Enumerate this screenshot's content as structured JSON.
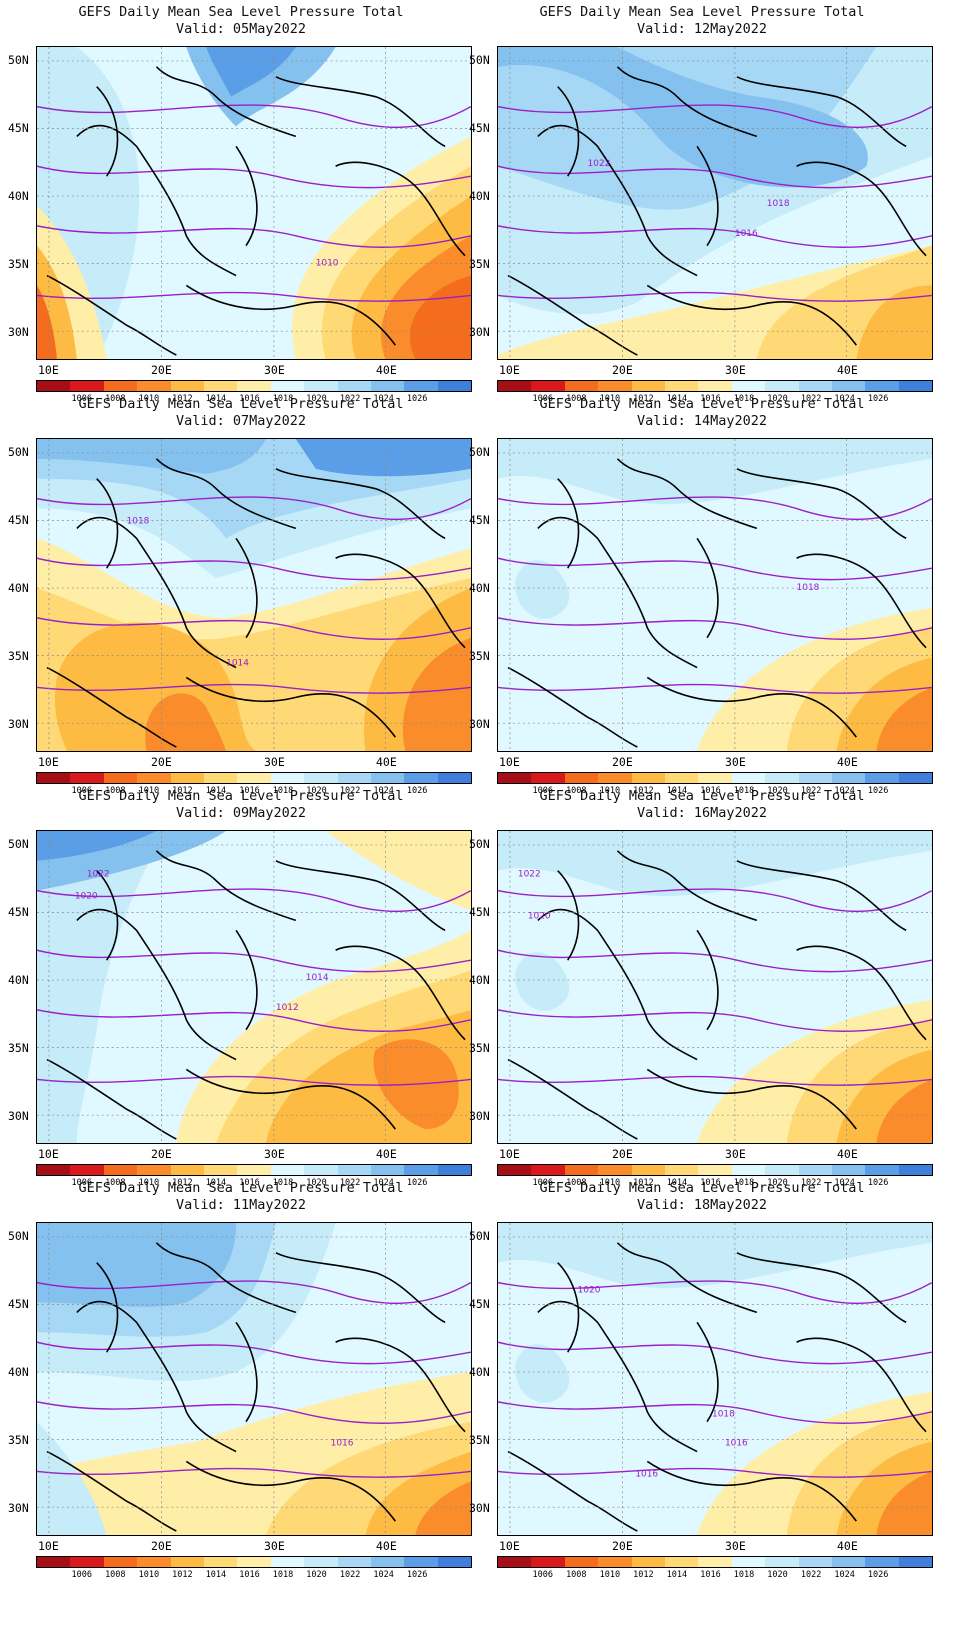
{
  "title": "GEFS Daily Mean Sea Level Pressure Total",
  "colorbar": {
    "colors": [
      "#a50f15",
      "#d7191c",
      "#f46d1f",
      "#fb8c2b",
      "#fdbb44",
      "#fed976",
      "#ffeea8",
      "#e0f8ff",
      "#c6ecfa",
      "#a6d8f5",
      "#85c1ef",
      "#5a9ee7",
      "#3f7fdc"
    ],
    "labels": [
      "1006",
      "1008",
      "1010",
      "1012",
      "1014",
      "1016",
      "1018",
      "1020",
      "1022",
      "1024",
      "1026"
    ]
  },
  "axes": {
    "x_ticks": [
      "10E",
      "20E",
      "30E",
      "40E"
    ],
    "y_ticks": [
      "50N",
      "45N",
      "40N",
      "35N",
      "30N"
    ]
  },
  "panels": [
    {
      "valid": "Valid: 05May2022",
      "labels": [
        "1010"
      ],
      "dominant": "warm-east"
    },
    {
      "valid": "Valid: 12May2022",
      "labels": [
        "1022",
        "1018",
        "1016"
      ],
      "dominant": "cool"
    },
    {
      "valid": "Valid: 07May2022",
      "labels": [
        "1018",
        "1014"
      ],
      "dominant": "warm-south"
    },
    {
      "valid": "Valid: 14May2022",
      "labels": [
        "1018"
      ],
      "dominant": "light"
    },
    {
      "valid": "Valid: 09May2022",
      "labels": [
        "1022",
        "1020",
        "1014",
        "1012"
      ],
      "dominant": "warm-southeast"
    },
    {
      "valid": "Valid: 16May2022",
      "labels": [
        "1022",
        "1020"
      ],
      "dominant": "light"
    },
    {
      "valid": "Valid: 11May2022",
      "labels": [
        "1016"
      ],
      "dominant": "cool-north"
    },
    {
      "valid": "Valid: 18May2022",
      "labels": [
        "1020",
        "1018",
        "1016",
        "1016"
      ],
      "dominant": "light"
    }
  ]
}
